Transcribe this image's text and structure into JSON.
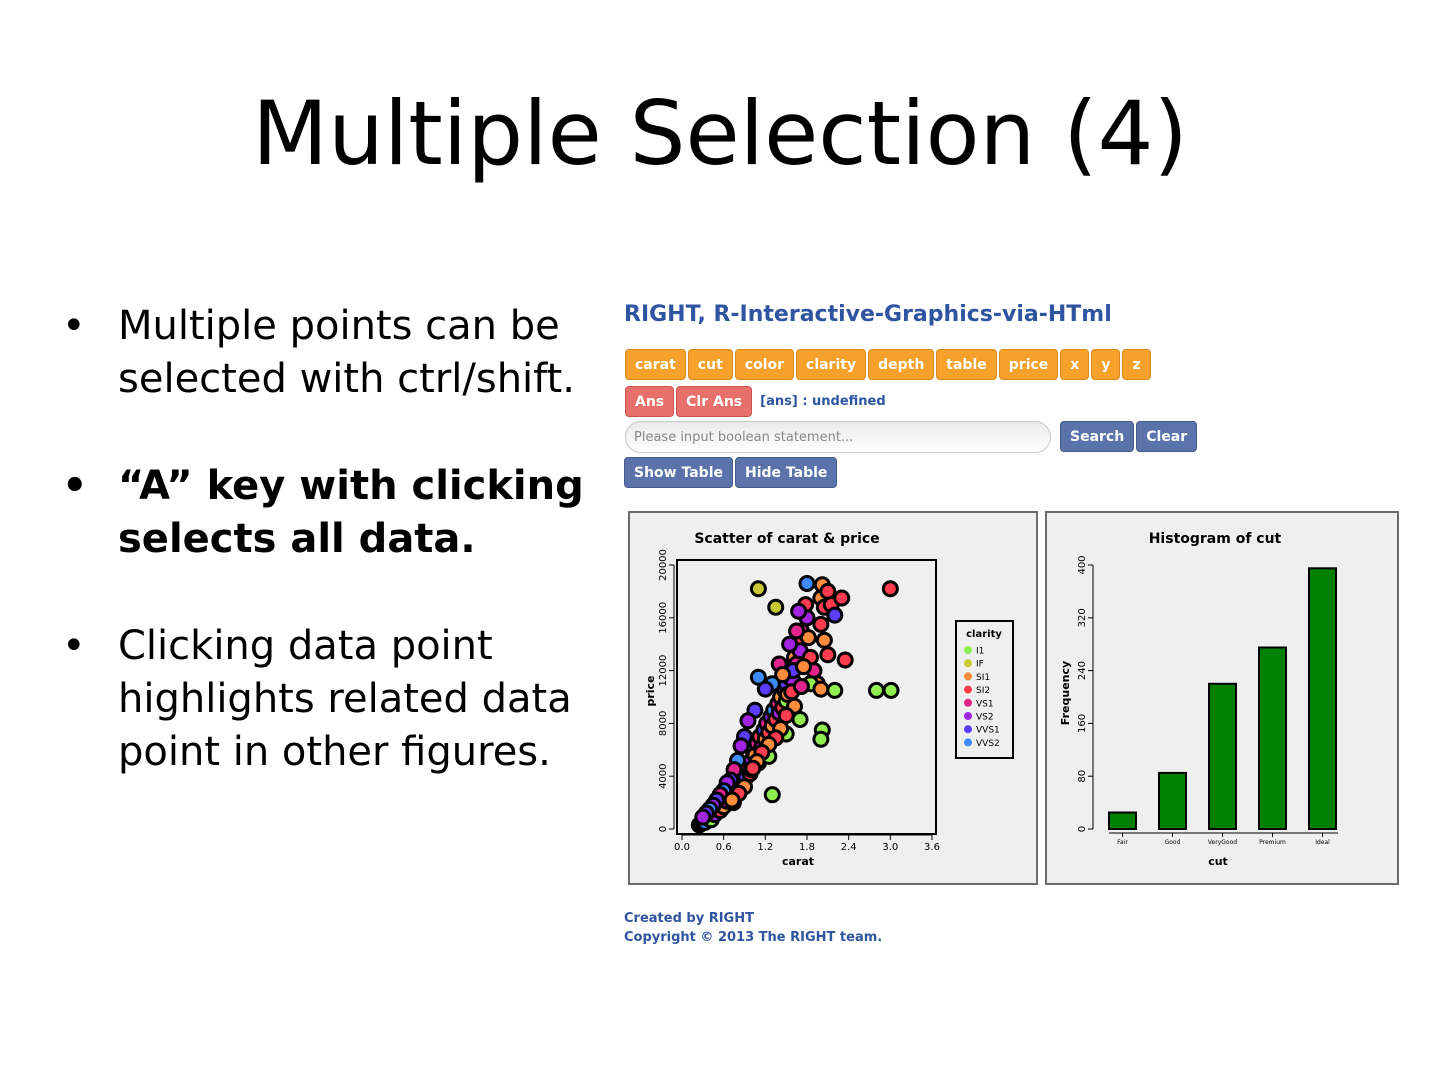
{
  "slide": {
    "title": "Multiple Selection (4)",
    "bullets": [
      {
        "text": "Multiple points can be selected with ctrl/shift.",
        "bold": false
      },
      {
        "text": "“A” key with clicking selects all data.",
        "bold": true
      },
      {
        "text": "Clicking data point highlights related data point in other figures.",
        "bold": false
      }
    ],
    "bullet_marker": "•"
  },
  "app": {
    "title": "RIGHT, R-Interactive-Graphics-via-HTml",
    "variable_buttons": [
      "carat",
      "cut",
      "color",
      "clarity",
      "depth",
      "table",
      "price",
      "x",
      "y",
      "z"
    ],
    "ans_button": "Ans",
    "clr_ans_button": "Clr Ans",
    "ans_text": "[ans] : undefined",
    "search_placeholder": "Please input boolean statement...",
    "search_button": "Search",
    "clear_button": "Clear",
    "show_table_button": "Show Table",
    "hide_table_button": "Hide Table",
    "colors": {
      "orange": "#f5a12b",
      "red": "#e8706a",
      "blue": "#5a74ab",
      "title": "#2f54a0",
      "bar": "#008000"
    }
  },
  "chart_data": [
    {
      "type": "scatter",
      "title": "Scatter of carat & price",
      "xlabel": "carat",
      "ylabel": "price",
      "xlim": [
        0,
        3.6
      ],
      "ylim": [
        0,
        20000
      ],
      "xticks": [
        "0.0",
        "0.6",
        "1.2",
        "1.8",
        "2.4",
        "3.0",
        "3.6"
      ],
      "yticks": [
        "0",
        "4000",
        "8000",
        "12000",
        "16000",
        "20000"
      ],
      "legend": {
        "title": "clarity",
        "placement": "right",
        "items": [
          {
            "name": "I1",
            "color": "#90ee50"
          },
          {
            "name": "IF",
            "color": "#c8c832"
          },
          {
            "name": "SI1",
            "color": "#ff8c3c"
          },
          {
            "name": "SI2",
            "color": "#ff3c50"
          },
          {
            "name": "VS1",
            "color": "#e0248c"
          },
          {
            "name": "VS2",
            "color": "#a024e0"
          },
          {
            "name": "VVS1",
            "color": "#5a3cff"
          },
          {
            "name": "VVS2",
            "color": "#3c8cff"
          }
        ]
      },
      "points": [
        {
          "x": 0.25,
          "y": 300,
          "c": "VS2"
        },
        {
          "x": 0.28,
          "y": 450,
          "c": "VVS1"
        },
        {
          "x": 0.3,
          "y": 600,
          "c": "VS1"
        },
        {
          "x": 0.32,
          "y": 700,
          "c": "SI1"
        },
        {
          "x": 0.33,
          "y": 500,
          "c": "VVS2"
        },
        {
          "x": 0.35,
          "y": 900,
          "c": "VS2"
        },
        {
          "x": 0.38,
          "y": 800,
          "c": "SI2"
        },
        {
          "x": 0.4,
          "y": 1000,
          "c": "VS1"
        },
        {
          "x": 0.41,
          "y": 1200,
          "c": "VVS1"
        },
        {
          "x": 0.42,
          "y": 700,
          "c": "I1"
        },
        {
          "x": 0.45,
          "y": 1300,
          "c": "SI1"
        },
        {
          "x": 0.47,
          "y": 1100,
          "c": "VS2"
        },
        {
          "x": 0.5,
          "y": 1500,
          "c": "VVS2"
        },
        {
          "x": 0.52,
          "y": 1800,
          "c": "VS1"
        },
        {
          "x": 0.55,
          "y": 1400,
          "c": "SI2"
        },
        {
          "x": 0.57,
          "y": 2000,
          "c": "VS2"
        },
        {
          "x": 0.6,
          "y": 1700,
          "c": "SI1"
        },
        {
          "x": 0.62,
          "y": 2400,
          "c": "VVS1"
        },
        {
          "x": 0.65,
          "y": 2100,
          "c": "VS1"
        },
        {
          "x": 0.68,
          "y": 2600,
          "c": "I1"
        },
        {
          "x": 0.7,
          "y": 2300,
          "c": "SI2"
        },
        {
          "x": 0.72,
          "y": 3000,
          "c": "VS2"
        },
        {
          "x": 0.74,
          "y": 2000,
          "c": "IF"
        },
        {
          "x": 0.75,
          "y": 3400,
          "c": "VVS2"
        },
        {
          "x": 0.78,
          "y": 2800,
          "c": "SI1"
        },
        {
          "x": 0.8,
          "y": 3600,
          "c": "VS1"
        },
        {
          "x": 0.82,
          "y": 3200,
          "c": "SI2"
        },
        {
          "x": 0.85,
          "y": 4000,
          "c": "VS2"
        },
        {
          "x": 0.88,
          "y": 3700,
          "c": "I1"
        },
        {
          "x": 0.9,
          "y": 4400,
          "c": "SI1"
        },
        {
          "x": 0.92,
          "y": 3900,
          "c": "VVS1"
        },
        {
          "x": 0.95,
          "y": 4700,
          "c": "VS1"
        },
        {
          "x": 0.98,
          "y": 4200,
          "c": "SI2"
        },
        {
          "x": 1.0,
          "y": 5200,
          "c": "VS2"
        },
        {
          "x": 1.0,
          "y": 4500,
          "c": "IF"
        },
        {
          "x": 1.02,
          "y": 6000,
          "c": "VVS2"
        },
        {
          "x": 1.05,
          "y": 5600,
          "c": "SI1"
        },
        {
          "x": 1.08,
          "y": 6500,
          "c": "VS1"
        },
        {
          "x": 1.1,
          "y": 5000,
          "c": "I1"
        },
        {
          "x": 1.12,
          "y": 7000,
          "c": "SI2"
        },
        {
          "x": 1.15,
          "y": 6200,
          "c": "VS2"
        },
        {
          "x": 1.18,
          "y": 7500,
          "c": "VVS1"
        },
        {
          "x": 1.2,
          "y": 6800,
          "c": "SI1"
        },
        {
          "x": 1.22,
          "y": 8000,
          "c": "VS1"
        },
        {
          "x": 1.25,
          "y": 7300,
          "c": "SI2"
        },
        {
          "x": 1.28,
          "y": 8500,
          "c": "VS2"
        },
        {
          "x": 1.3,
          "y": 7800,
          "c": "SI1"
        },
        {
          "x": 1.32,
          "y": 9000,
          "c": "VVS2"
        },
        {
          "x": 1.35,
          "y": 8300,
          "c": "SI2"
        },
        {
          "x": 1.38,
          "y": 9500,
          "c": "VS1"
        },
        {
          "x": 1.4,
          "y": 8800,
          "c": "VS2"
        },
        {
          "x": 1.42,
          "y": 10000,
          "c": "SI1"
        },
        {
          "x": 1.45,
          "y": 9200,
          "c": "SI2"
        },
        {
          "x": 1.48,
          "y": 10500,
          "c": "VS2"
        },
        {
          "x": 1.5,
          "y": 9700,
          "c": "I1"
        },
        {
          "x": 1.5,
          "y": 11000,
          "c": "VVS1"
        },
        {
          "x": 1.52,
          "y": 10200,
          "c": "SI1"
        },
        {
          "x": 1.55,
          "y": 11500,
          "c": "VS1"
        },
        {
          "x": 1.58,
          "y": 12200,
          "c": "SI2"
        },
        {
          "x": 1.6,
          "y": 11200,
          "c": "VS2"
        },
        {
          "x": 1.62,
          "y": 13000,
          "c": "SI1"
        },
        {
          "x": 1.65,
          "y": 12500,
          "c": "VS1"
        },
        {
          "x": 1.68,
          "y": 14000,
          "c": "SI2"
        },
        {
          "x": 1.7,
          "y": 13500,
          "c": "VS2"
        },
        {
          "x": 1.72,
          "y": 15000,
          "c": "VS1"
        },
        {
          "x": 1.75,
          "y": 16500,
          "c": "SI1"
        },
        {
          "x": 1.78,
          "y": 17000,
          "c": "SI2"
        },
        {
          "x": 1.8,
          "y": 16000,
          "c": "VS2"
        },
        {
          "x": 1.82,
          "y": 14500,
          "c": "SI1"
        },
        {
          "x": 1.85,
          "y": 13000,
          "c": "SI2"
        },
        {
          "x": 1.9,
          "y": 12000,
          "c": "VS1"
        },
        {
          "x": 1.95,
          "y": 11000,
          "c": "SI1"
        },
        {
          "x": 2.0,
          "y": 15500,
          "c": "SI2"
        },
        {
          "x": 2.0,
          "y": 17500,
          "c": "SI1"
        },
        {
          "x": 2.02,
          "y": 18500,
          "c": "SI1"
        },
        {
          "x": 2.05,
          "y": 16800,
          "c": "SI2"
        },
        {
          "x": 2.1,
          "y": 18000,
          "c": "SI2"
        },
        {
          "x": 2.15,
          "y": 17000,
          "c": "SI2"
        },
        {
          "x": 2.2,
          "y": 16200,
          "c": "VVS1"
        },
        {
          "x": 2.1,
          "y": 13200,
          "c": "SI2"
        },
        {
          "x": 2.05,
          "y": 14300,
          "c": "SI1"
        },
        {
          "x": 2.3,
          "y": 17500,
          "c": "SI2"
        },
        {
          "x": 2.35,
          "y": 12800,
          "c": "SI2"
        },
        {
          "x": 1.85,
          "y": 11000,
          "c": "I1"
        },
        {
          "x": 2.0,
          "y": 10600,
          "c": "SI1"
        },
        {
          "x": 2.2,
          "y": 10500,
          "c": "I1"
        },
        {
          "x": 2.02,
          "y": 7500,
          "c": "I1"
        },
        {
          "x": 2.0,
          "y": 6800,
          "c": "I1"
        },
        {
          "x": 1.7,
          "y": 8300,
          "c": "I1"
        },
        {
          "x": 1.5,
          "y": 7200,
          "c": "I1"
        },
        {
          "x": 1.25,
          "y": 5500,
          "c": "I1"
        },
        {
          "x": 1.3,
          "y": 2600,
          "c": "I1"
        },
        {
          "x": 2.8,
          "y": 10500,
          "c": "I1"
        },
        {
          "x": 3.01,
          "y": 10500,
          "c": "I1"
        },
        {
          "x": 3.0,
          "y": 18200,
          "c": "SI2"
        },
        {
          "x": 1.1,
          "y": 18200,
          "c": "IF"
        },
        {
          "x": 1.35,
          "y": 16800,
          "c": "IF"
        },
        {
          "x": 1.8,
          "y": 18600,
          "c": "VVS2"
        },
        {
          "x": 1.68,
          "y": 16500,
          "c": "VS2"
        },
        {
          "x": 1.65,
          "y": 15000,
          "c": "VS1"
        },
        {
          "x": 1.55,
          "y": 14000,
          "c": "VS2"
        },
        {
          "x": 1.6,
          "y": 12000,
          "c": "VVS1"
        },
        {
          "x": 1.4,
          "y": 12500,
          "c": "VS1"
        },
        {
          "x": 1.3,
          "y": 11000,
          "c": "VVS2"
        },
        {
          "x": 1.2,
          "y": 10600,
          "c": "VVS1"
        },
        {
          "x": 1.1,
          "y": 11500,
          "c": "VVS2"
        },
        {
          "x": 1.05,
          "y": 9000,
          "c": "VVS1"
        },
        {
          "x": 0.95,
          "y": 8200,
          "c": "VS2"
        },
        {
          "x": 0.9,
          "y": 7000,
          "c": "VVS1"
        },
        {
          "x": 0.85,
          "y": 6300,
          "c": "VS2"
        },
        {
          "x": 0.8,
          "y": 5200,
          "c": "VVS2"
        },
        {
          "x": 0.75,
          "y": 4500,
          "c": "VS1"
        },
        {
          "x": 0.7,
          "y": 3700,
          "c": "VVS1"
        },
        {
          "x": 0.65,
          "y": 3500,
          "c": "VS2"
        },
        {
          "x": 0.6,
          "y": 2900,
          "c": "VVS2"
        },
        {
          "x": 0.55,
          "y": 2600,
          "c": "VS1"
        },
        {
          "x": 0.5,
          "y": 2200,
          "c": "VVS1"
        },
        {
          "x": 0.45,
          "y": 1800,
          "c": "VS2"
        },
        {
          "x": 0.4,
          "y": 1500,
          "c": "VVS2"
        },
        {
          "x": 0.35,
          "y": 1200,
          "c": "VVS1"
        },
        {
          "x": 0.3,
          "y": 900,
          "c": "VS2"
        },
        {
          "x": 1.45,
          "y": 11700,
          "c": "SI1"
        },
        {
          "x": 1.58,
          "y": 10400,
          "c": "SI2"
        },
        {
          "x": 1.75,
          "y": 12300,
          "c": "SI1"
        },
        {
          "x": 1.72,
          "y": 10800,
          "c": "VS1"
        },
        {
          "x": 1.62,
          "y": 9300,
          "c": "SI1"
        },
        {
          "x": 1.5,
          "y": 8600,
          "c": "SI2"
        },
        {
          "x": 1.42,
          "y": 7600,
          "c": "SI1"
        },
        {
          "x": 1.35,
          "y": 6900,
          "c": "SI2"
        },
        {
          "x": 1.25,
          "y": 6400,
          "c": "SI1"
        },
        {
          "x": 1.15,
          "y": 5800,
          "c": "SI2"
        },
        {
          "x": 1.08,
          "y": 5100,
          "c": "SI1"
        },
        {
          "x": 1.02,
          "y": 4600,
          "c": "SI2"
        },
        {
          "x": 0.9,
          "y": 3200,
          "c": "SI1"
        },
        {
          "x": 0.82,
          "y": 2700,
          "c": "SI2"
        },
        {
          "x": 0.72,
          "y": 2200,
          "c": "SI1"
        }
      ]
    },
    {
      "type": "bar",
      "title": "Histogram of cut",
      "xlabel": "cut",
      "ylabel": "Frequency",
      "categories": [
        "Fair",
        "Good",
        "VeryGood",
        "Premium",
        "Ideal"
      ],
      "values": [
        25,
        85,
        220,
        275,
        395
      ],
      "ylim": [
        0,
        400
      ],
      "yticks": [
        "0",
        "80",
        "160",
        "240",
        "320",
        "400"
      ]
    }
  ],
  "footer": {
    "line1": "Created by RIGHT",
    "line2": "Copyright © 2013 The RIGHT team."
  }
}
